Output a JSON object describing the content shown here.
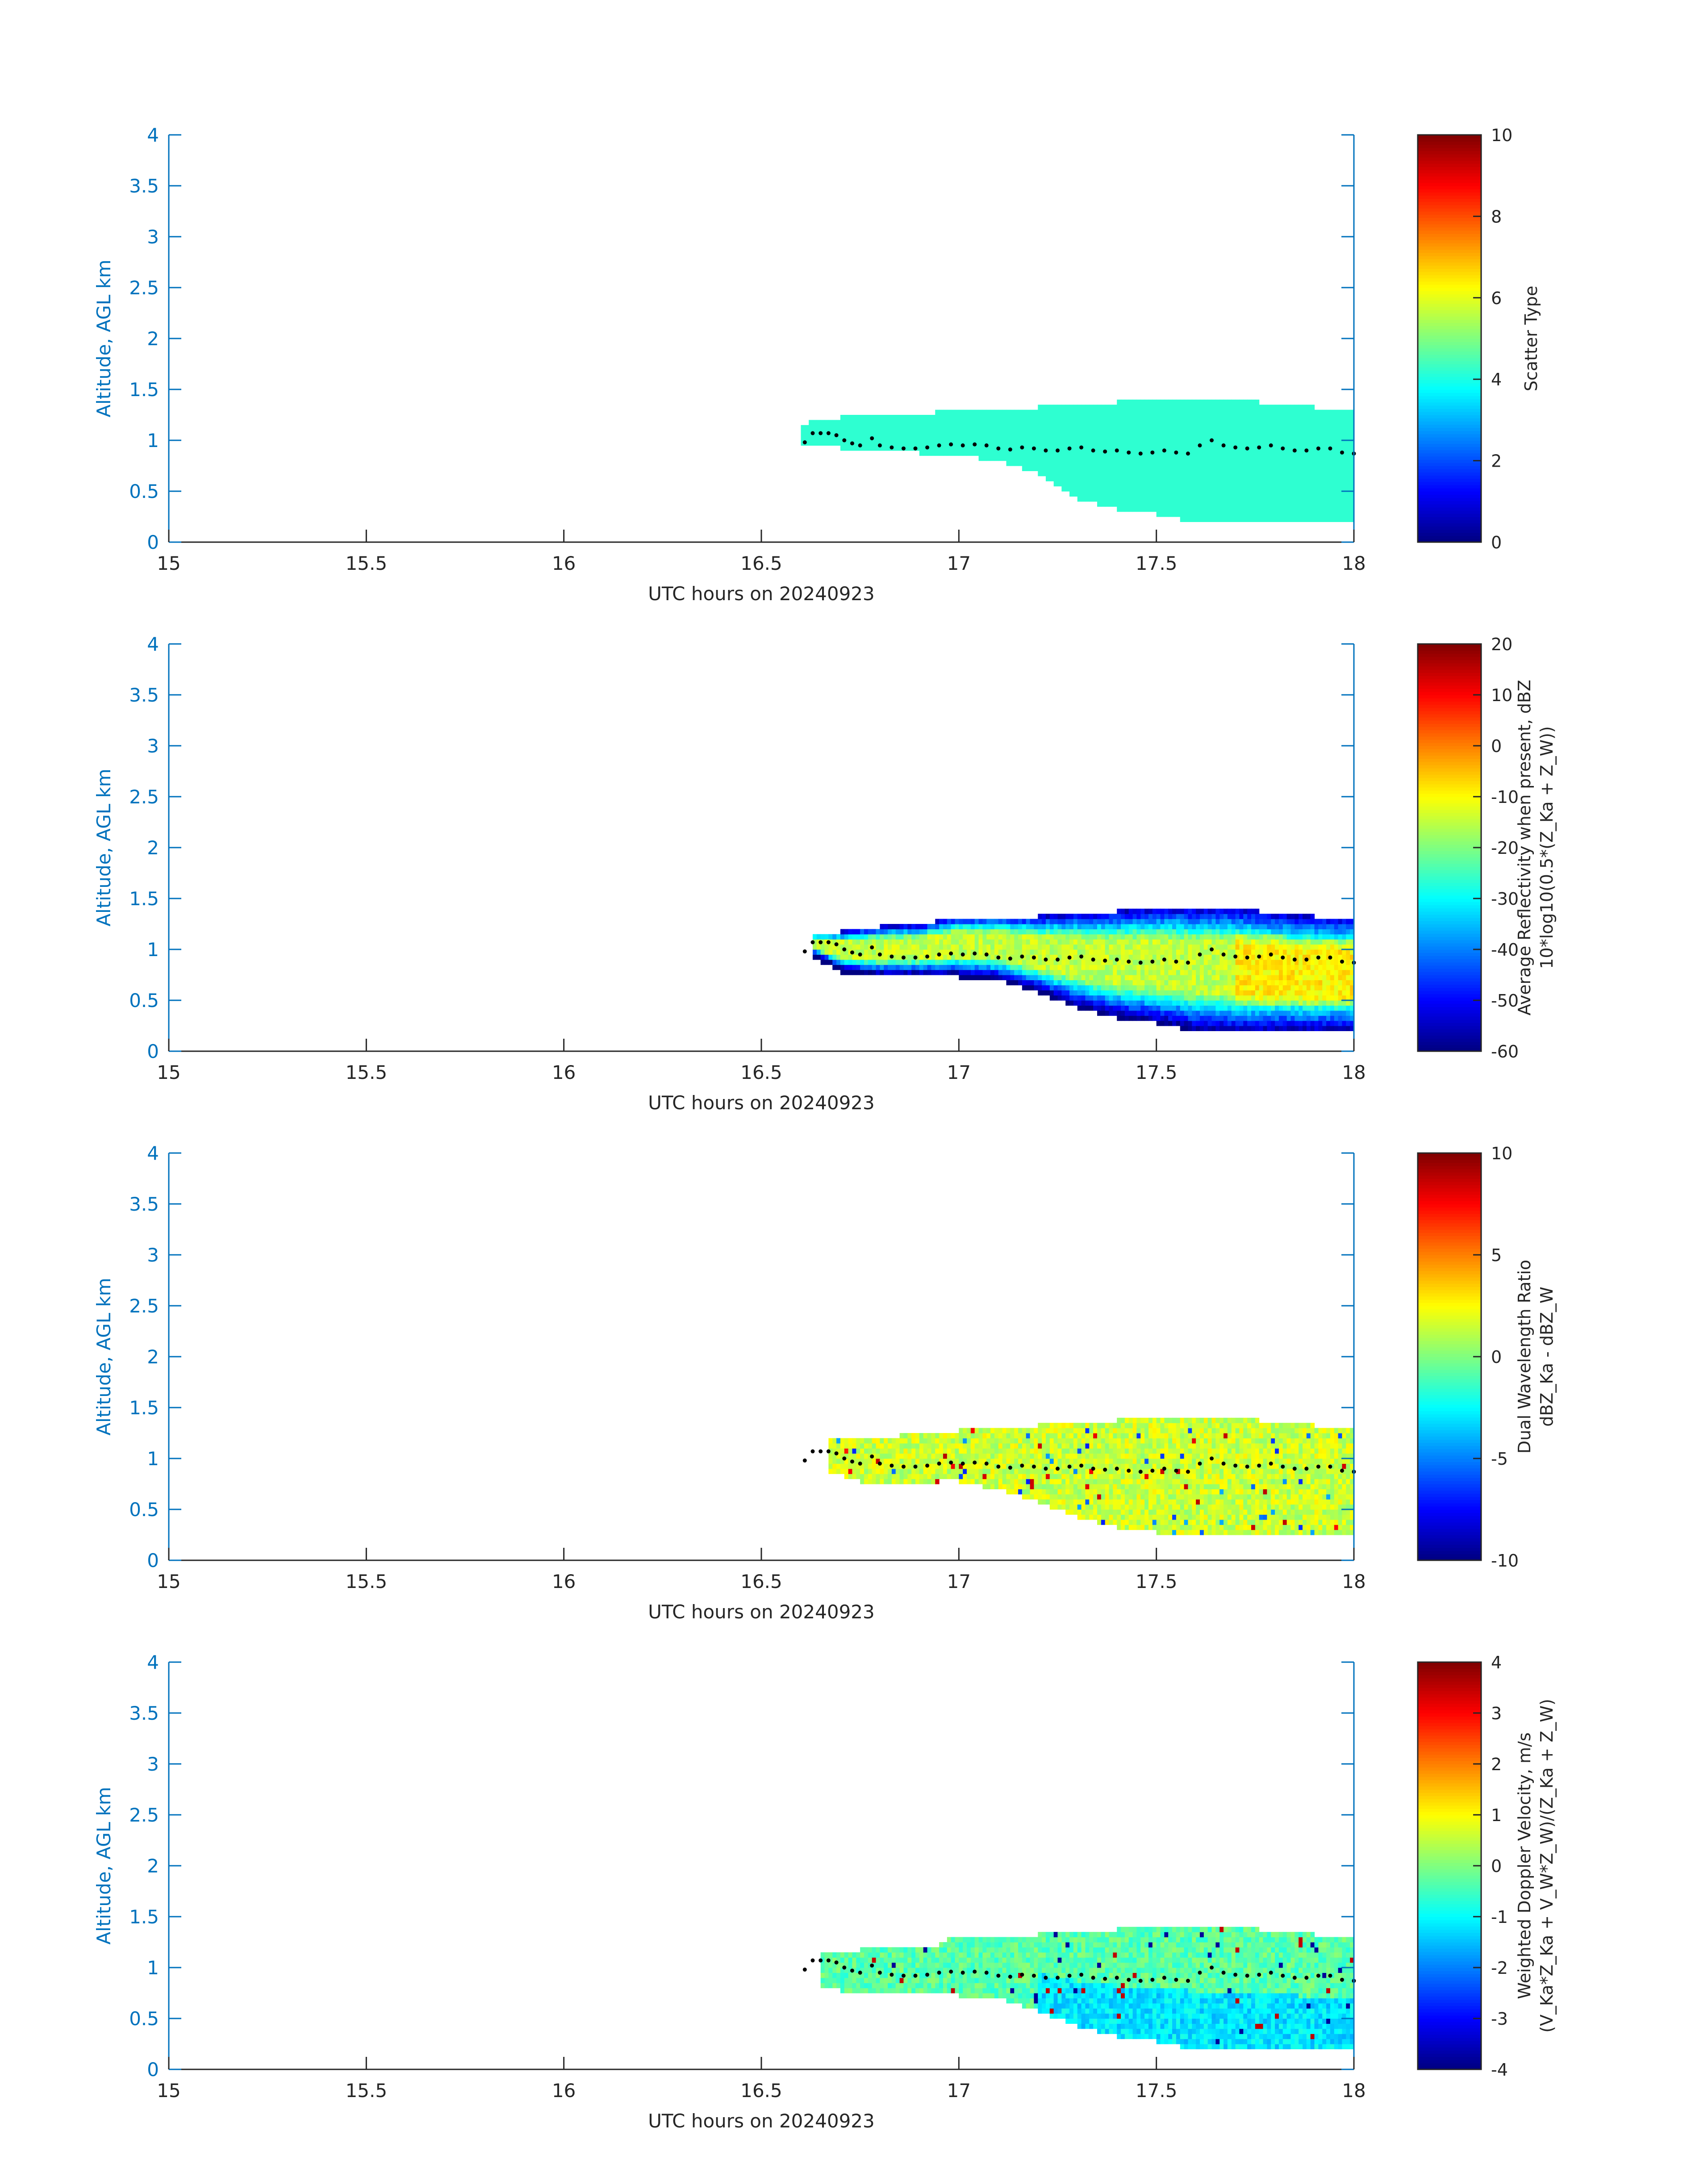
{
  "figure": {
    "shared": {
      "xlabel": "UTC hours on 20240923",
      "ylabel": "Altitude, AGL km",
      "xlim": [
        15,
        18
      ],
      "ylim": [
        0,
        4
      ],
      "xticks": [
        "15",
        "15.5",
        "16",
        "16.5",
        "17",
        "17.5",
        "18"
      ],
      "yticks": [
        "0",
        "0.5",
        "1",
        "1.5",
        "2",
        "2.5",
        "3",
        "3.5",
        "4"
      ],
      "colors": {
        "axis_left": "#0072BD",
        "axis_bottom": "#262626",
        "text": "#262626"
      }
    },
    "colormap": "jet"
  },
  "chart_data": [
    {
      "type": "heatmap",
      "field": "scatter_type",
      "xlabel": "UTC hours on 20240923",
      "ylabel": "Altitude, AGL km",
      "xlim": [
        15,
        18
      ],
      "ylim": [
        0,
        4
      ],
      "colorbar": {
        "label_lines": [
          "Scatter Type"
        ],
        "clim": [
          0,
          10
        ],
        "ticks": [
          "0",
          "2",
          "4",
          "6",
          "8",
          "10"
        ]
      },
      "data_extent": {
        "x_start": 16.6,
        "x_end": 18.0
      },
      "typical_value": 4.2,
      "envelope": [
        [
          16.6,
          1.0,
          1.12
        ],
        [
          16.65,
          0.97,
          1.2
        ],
        [
          16.7,
          0.95,
          1.2
        ],
        [
          16.75,
          0.92,
          1.25
        ],
        [
          16.8,
          0.9,
          1.25
        ],
        [
          16.9,
          0.9,
          1.22
        ],
        [
          17.0,
          0.88,
          1.3
        ],
        [
          17.1,
          0.82,
          1.3
        ],
        [
          17.2,
          0.7,
          1.3
        ],
        [
          17.3,
          0.45,
          1.33
        ],
        [
          17.4,
          0.35,
          1.35
        ],
        [
          17.5,
          0.3,
          1.38
        ],
        [
          17.6,
          0.22,
          1.38
        ],
        [
          17.7,
          0.2,
          1.38
        ],
        [
          17.8,
          0.2,
          1.33
        ],
        [
          17.9,
          0.2,
          1.3
        ],
        [
          18.0,
          0.2,
          1.28
        ]
      ]
    },
    {
      "type": "heatmap",
      "field": "reflectivity",
      "xlabel": "UTC hours on 20240923",
      "ylabel": "Altitude, AGL km",
      "xlim": [
        15,
        18
      ],
      "ylim": [
        0,
        4
      ],
      "colorbar": {
        "label_lines": [
          "Average Reflectivity when present, dBZ",
          "10*log10(0.5*(Z_Ka + Z_W))"
        ],
        "clim": [
          -60,
          20
        ],
        "ticks": [
          "-60",
          "-50",
          "-40",
          "-30",
          "-20",
          "-10",
          "0",
          "10",
          "20"
        ]
      },
      "data_extent": {
        "x_start": 16.63,
        "x_end": 18.0
      },
      "value_range": [
        -55,
        -15
      ],
      "envelope": [
        [
          16.63,
          0.95,
          1.13
        ],
        [
          16.7,
          0.8,
          1.15
        ],
        [
          16.8,
          0.75,
          1.2
        ],
        [
          16.9,
          0.75,
          1.22
        ],
        [
          17.0,
          0.75,
          1.3
        ],
        [
          17.1,
          0.72,
          1.3
        ],
        [
          17.2,
          0.6,
          1.3
        ],
        [
          17.3,
          0.45,
          1.33
        ],
        [
          17.4,
          0.35,
          1.35
        ],
        [
          17.5,
          0.3,
          1.38
        ],
        [
          17.6,
          0.22,
          1.38
        ],
        [
          17.7,
          0.2,
          1.38
        ],
        [
          17.8,
          0.2,
          1.33
        ],
        [
          17.9,
          0.2,
          1.3
        ],
        [
          18.0,
          0.2,
          1.28
        ]
      ]
    },
    {
      "type": "heatmap",
      "field": "dual_wavelength_ratio",
      "xlabel": "UTC hours on 20240923",
      "ylabel": "Altitude, AGL km",
      "xlim": [
        15,
        18
      ],
      "ylim": [
        0,
        4
      ],
      "colorbar": {
        "label_lines": [
          "Dual Wavelength Ratio",
          "dBZ_Ka - dBZ_W"
        ],
        "clim": [
          -10,
          10
        ],
        "ticks": [
          "-10",
          "-5",
          "0",
          "5",
          "10"
        ]
      },
      "data_extent": {
        "x_start": 16.67,
        "x_end": 18.0
      },
      "value_range": [
        0,
        3
      ],
      "envelope": [
        [
          16.67,
          0.9,
          1.18
        ],
        [
          16.75,
          0.8,
          1.2
        ],
        [
          16.85,
          0.78,
          1.2
        ],
        [
          16.95,
          0.8,
          1.22
        ],
        [
          17.0,
          0.8,
          1.25
        ],
        [
          17.1,
          0.72,
          1.3
        ],
        [
          17.2,
          0.6,
          1.3
        ],
        [
          17.3,
          0.45,
          1.33
        ],
        [
          17.4,
          0.35,
          1.35
        ],
        [
          17.5,
          0.3,
          1.38
        ],
        [
          17.6,
          0.25,
          1.38
        ],
        [
          17.7,
          0.25,
          1.38
        ],
        [
          17.8,
          0.25,
          1.33
        ],
        [
          17.9,
          0.25,
          1.3
        ],
        [
          18.0,
          0.25,
          1.28
        ]
      ]
    },
    {
      "type": "heatmap",
      "field": "weighted_doppler_velocity",
      "xlabel": "UTC hours on 20240923",
      "ylabel": "Altitude, AGL km",
      "xlim": [
        15,
        18
      ],
      "ylim": [
        0,
        4
      ],
      "colorbar": {
        "label_lines": [
          "Weighted Doppler Velocity, m/s",
          "(V_Ka*Z_Ka + V_W*Z_W)/(Z_Ka + Z_W)"
        ],
        "clim": [
          -4,
          4
        ],
        "ticks": [
          "-4",
          "-3",
          "-2",
          "-1",
          "0",
          "1",
          "2",
          "3",
          "4"
        ]
      },
      "data_extent": {
        "x_start": 16.65,
        "x_end": 18.0
      },
      "value_range": [
        -1.5,
        0.3
      ],
      "envelope": [
        [
          16.65,
          0.85,
          1.1
        ],
        [
          16.75,
          0.75,
          1.15
        ],
        [
          16.85,
          0.75,
          1.18
        ],
        [
          16.95,
          0.75,
          1.2
        ],
        [
          17.0,
          0.75,
          1.3
        ],
        [
          17.1,
          0.72,
          1.3
        ],
        [
          17.2,
          0.6,
          1.3
        ],
        [
          17.3,
          0.45,
          1.33
        ],
        [
          17.4,
          0.35,
          1.35
        ],
        [
          17.5,
          0.3,
          1.38
        ],
        [
          17.6,
          0.22,
          1.38
        ],
        [
          17.7,
          0.2,
          1.38
        ],
        [
          17.8,
          0.2,
          1.33
        ],
        [
          17.9,
          0.2,
          1.3
        ],
        [
          18.0,
          0.2,
          1.28
        ]
      ]
    }
  ],
  "cloud_base_series": {
    "description_free": true,
    "points": [
      [
        16.61,
        0.98
      ],
      [
        16.63,
        1.07
      ],
      [
        16.65,
        1.07
      ],
      [
        16.67,
        1.07
      ],
      [
        16.69,
        1.05
      ],
      [
        16.71,
        1.0
      ],
      [
        16.73,
        0.97
      ],
      [
        16.75,
        0.95
      ],
      [
        16.78,
        1.02
      ],
      [
        16.8,
        0.95
      ],
      [
        16.83,
        0.93
      ],
      [
        16.86,
        0.92
      ],
      [
        16.89,
        0.92
      ],
      [
        16.92,
        0.93
      ],
      [
        16.95,
        0.95
      ],
      [
        16.98,
        0.96
      ],
      [
        17.01,
        0.95
      ],
      [
        17.04,
        0.96
      ],
      [
        17.07,
        0.95
      ],
      [
        17.1,
        0.92
      ],
      [
        17.13,
        0.91
      ],
      [
        17.16,
        0.93
      ],
      [
        17.19,
        0.92
      ],
      [
        17.22,
        0.9
      ],
      [
        17.25,
        0.9
      ],
      [
        17.28,
        0.92
      ],
      [
        17.31,
        0.93
      ],
      [
        17.34,
        0.9
      ],
      [
        17.37,
        0.89
      ],
      [
        17.4,
        0.9
      ],
      [
        17.43,
        0.88
      ],
      [
        17.46,
        0.87
      ],
      [
        17.49,
        0.88
      ],
      [
        17.52,
        0.9
      ],
      [
        17.55,
        0.88
      ],
      [
        17.58,
        0.87
      ],
      [
        17.61,
        0.95
      ],
      [
        17.64,
        1.0
      ],
      [
        17.67,
        0.95
      ],
      [
        17.7,
        0.93
      ],
      [
        17.73,
        0.92
      ],
      [
        17.76,
        0.93
      ],
      [
        17.79,
        0.95
      ],
      [
        17.82,
        0.92
      ],
      [
        17.85,
        0.9
      ],
      [
        17.88,
        0.9
      ],
      [
        17.91,
        0.92
      ],
      [
        17.94,
        0.92
      ],
      [
        17.97,
        0.88
      ],
      [
        18.0,
        0.87
      ]
    ]
  }
}
